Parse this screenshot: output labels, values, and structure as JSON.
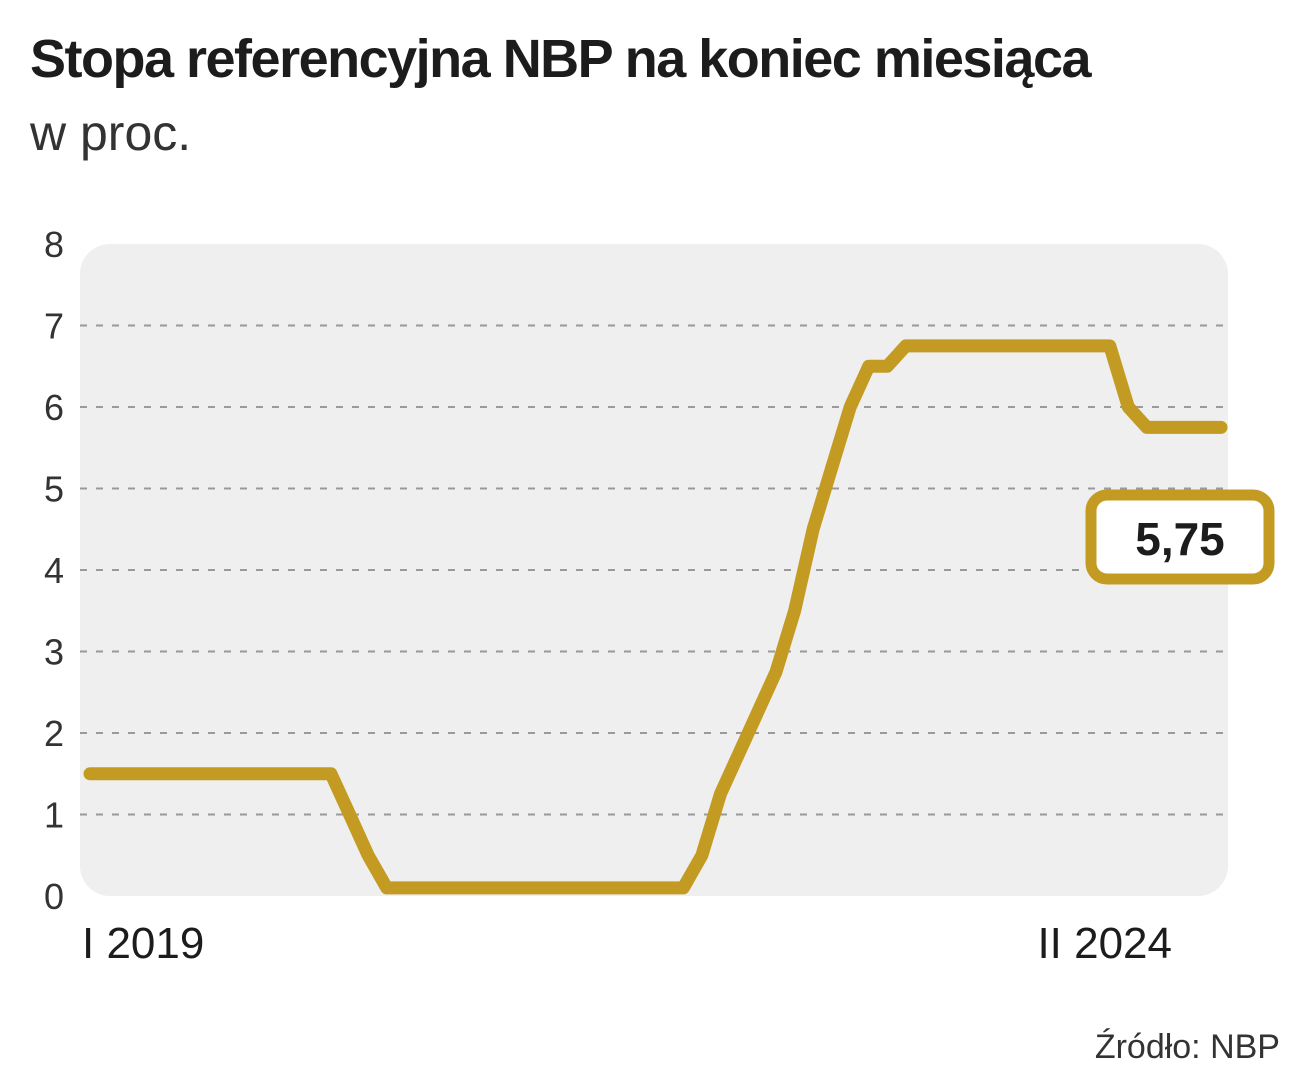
{
  "header": {
    "title": "Stopa referencyjna NBP na koniec miesiąca",
    "subtitle": "w proc."
  },
  "source": "Źródło: NBP",
  "colors": {
    "line": "#c49b22",
    "panel": "#efefef",
    "grid": "#9a9a9a",
    "text": "#1c1c1c"
  },
  "chart_data": {
    "type": "line",
    "title": "Stopa referencyjna NBP na koniec miesiąca",
    "subtitle": "w proc.",
    "x_tick_labels": [
      "I 2019",
      "II 2024"
    ],
    "y_ticks": [
      0,
      1,
      2,
      3,
      4,
      5,
      6,
      7,
      8
    ],
    "ylim": [
      0,
      8
    ],
    "grid": "horizontal-dashed",
    "callout": "5,75",
    "series": [
      {
        "x": [
          "2019-01",
          "2019-02",
          "2019-03",
          "2019-04",
          "2019-05",
          "2019-06",
          "2019-07",
          "2019-08",
          "2019-09",
          "2019-10",
          "2019-11",
          "2019-12",
          "2020-01",
          "2020-02",
          "2020-03",
          "2020-04",
          "2020-05",
          "2020-06",
          "2020-07",
          "2020-08",
          "2020-09",
          "2020-10",
          "2020-11",
          "2020-12",
          "2021-01",
          "2021-02",
          "2021-03",
          "2021-04",
          "2021-05",
          "2021-06",
          "2021-07",
          "2021-08",
          "2021-09",
          "2021-10",
          "2021-11",
          "2021-12",
          "2022-01",
          "2022-02",
          "2022-03",
          "2022-04",
          "2022-05",
          "2022-06",
          "2022-07",
          "2022-08",
          "2022-09",
          "2022-10",
          "2022-11",
          "2022-12",
          "2023-01",
          "2023-02",
          "2023-03",
          "2023-04",
          "2023-05",
          "2023-06",
          "2023-07",
          "2023-08",
          "2023-09",
          "2023-10",
          "2023-11",
          "2023-12",
          "2024-01",
          "2024-02"
        ],
        "values": [
          1.5,
          1.5,
          1.5,
          1.5,
          1.5,
          1.5,
          1.5,
          1.5,
          1.5,
          1.5,
          1.5,
          1.5,
          1.5,
          1.5,
          1.0,
          0.5,
          0.1,
          0.1,
          0.1,
          0.1,
          0.1,
          0.1,
          0.1,
          0.1,
          0.1,
          0.1,
          0.1,
          0.1,
          0.1,
          0.1,
          0.1,
          0.1,
          0.1,
          0.5,
          1.25,
          1.75,
          2.25,
          2.75,
          3.5,
          4.5,
          5.25,
          6.0,
          6.5,
          6.5,
          6.75,
          6.75,
          6.75,
          6.75,
          6.75,
          6.75,
          6.75,
          6.75,
          6.75,
          6.75,
          6.75,
          6.75,
          6.0,
          5.75,
          5.75,
          5.75,
          5.75,
          5.75
        ]
      }
    ]
  }
}
